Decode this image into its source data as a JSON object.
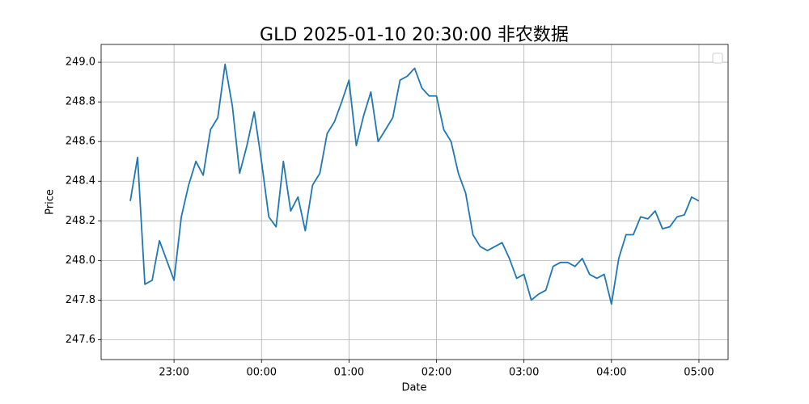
{
  "chart_data": {
    "type": "line",
    "title": "GLD 2025-01-10 20:30:00 非农数据",
    "x_label": "Date",
    "y_label": "Price",
    "x": [
      "22:30",
      "22:35",
      "22:40",
      "22:45",
      "22:50",
      "22:55",
      "23:00",
      "23:05",
      "23:10",
      "23:15",
      "23:20",
      "23:25",
      "23:30",
      "23:35",
      "23:40",
      "23:45",
      "23:50",
      "23:55",
      "00:00",
      "00:05",
      "00:10",
      "00:15",
      "00:20",
      "00:25",
      "00:30",
      "00:35",
      "00:40",
      "00:45",
      "00:50",
      "00:55",
      "01:00",
      "01:05",
      "01:10",
      "01:15",
      "01:20",
      "01:25",
      "01:30",
      "01:35",
      "01:40",
      "01:45",
      "01:50",
      "01:55",
      "02:00",
      "02:05",
      "02:10",
      "02:15",
      "02:20",
      "02:25",
      "02:30",
      "02:35",
      "02:40",
      "02:45",
      "02:50",
      "02:55",
      "03:00",
      "03:05",
      "03:10",
      "03:15",
      "03:20",
      "03:25",
      "03:30",
      "03:35",
      "03:40",
      "03:45",
      "03:50",
      "03:55",
      "04:00",
      "04:05",
      "04:10",
      "04:15",
      "04:20",
      "04:25",
      "04:30",
      "04:35",
      "04:40",
      "04:45",
      "04:50",
      "04:55",
      "05:00"
    ],
    "series": [
      {
        "color": "#1f77b4",
        "values": [
          248.3,
          248.52,
          247.88,
          247.9,
          248.1,
          248.0,
          247.9,
          248.22,
          248.38,
          248.5,
          248.43,
          248.66,
          248.72,
          248.99,
          248.78,
          248.44,
          248.58,
          248.75,
          248.5,
          248.22,
          248.17,
          248.5,
          248.25,
          248.32,
          248.15,
          248.38,
          248.44,
          248.64,
          248.7,
          248.8,
          248.91,
          248.58,
          248.73,
          248.85,
          248.6,
          248.66,
          248.72,
          248.91,
          248.93,
          248.97,
          248.87,
          248.83,
          248.83,
          248.66,
          248.6,
          248.44,
          248.34,
          248.13,
          248.07,
          248.05,
          248.07,
          248.09,
          248.01,
          247.91,
          247.93,
          247.8,
          247.83,
          247.85,
          247.97,
          247.99,
          247.99,
          247.97,
          248.01,
          247.93,
          247.91,
          247.93,
          247.78,
          248.01,
          248.13,
          248.13,
          248.22,
          248.21,
          248.25,
          248.16,
          248.17,
          248.22,
          248.23,
          248.32,
          248.3
        ]
      }
    ],
    "xlim": [
      "22:10",
      "05:20"
    ],
    "xticks": [
      "23:00",
      "00:00",
      "01:00",
      "02:00",
      "03:00",
      "04:00",
      "05:00"
    ],
    "ylim": [
      247.5,
      249.09
    ],
    "yticks": [
      247.6,
      247.8,
      {
        "value": 248.0,
        "label": "248.0"
      },
      248.2,
      248.4,
      248.6,
      248.8,
      {
        "value": 249.0,
        "label": "249.0"
      }
    ],
    "grid": true
  }
}
